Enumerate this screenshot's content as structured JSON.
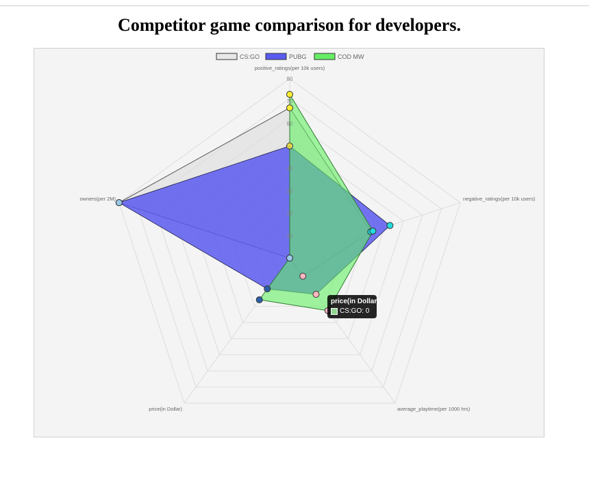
{
  "page": {
    "title": "Competitor game comparison for developers."
  },
  "chart_data": {
    "type": "radar",
    "title": "Competitor game comparison for developers.",
    "axes": [
      "positive_ratings(per 10k users)",
      "negative_ratings(per 10k users)",
      "average_playtime(per 1000 hrs)",
      "price(in Dollar)",
      "owners(per 2M)"
    ],
    "r_ticks": [
      "0",
      "10",
      "20",
      "30",
      "40",
      "50",
      "60",
      "70",
      "80"
    ],
    "r_range": [
      0,
      80
    ],
    "grid": true,
    "legend_position": "top",
    "series": [
      {
        "name": "CS:GO",
        "values": [
          67,
          38,
          10,
          0,
          80
        ],
        "fill": "rgba(220,220,220,0.6)",
        "border": "#555555",
        "point_color": "#ffb6c1"
      },
      {
        "name": "PUBG",
        "values": [
          50,
          47,
          20,
          17,
          80
        ],
        "fill": "rgba(90,90,240,0.85)",
        "border": "#333366",
        "point_color": "#2b5fa8"
      },
      {
        "name": "COD MW",
        "values": [
          73,
          39,
          29,
          23,
          0
        ],
        "fill": "rgba(100,240,100,0.6)",
        "border": "#2d7a2d",
        "point_color": "#66dd66"
      }
    ],
    "point_colors_by_axis": [
      "#ffee33",
      "#22dddd",
      "#ffb6c1",
      "#2b5fa8",
      "#9ac8e8"
    ],
    "tooltip": {
      "title": "price(in Dollar)",
      "series": "CS:GO",
      "value": "0",
      "label": "CS:GO: 0",
      "swatch_color": "#8fd68f"
    }
  }
}
